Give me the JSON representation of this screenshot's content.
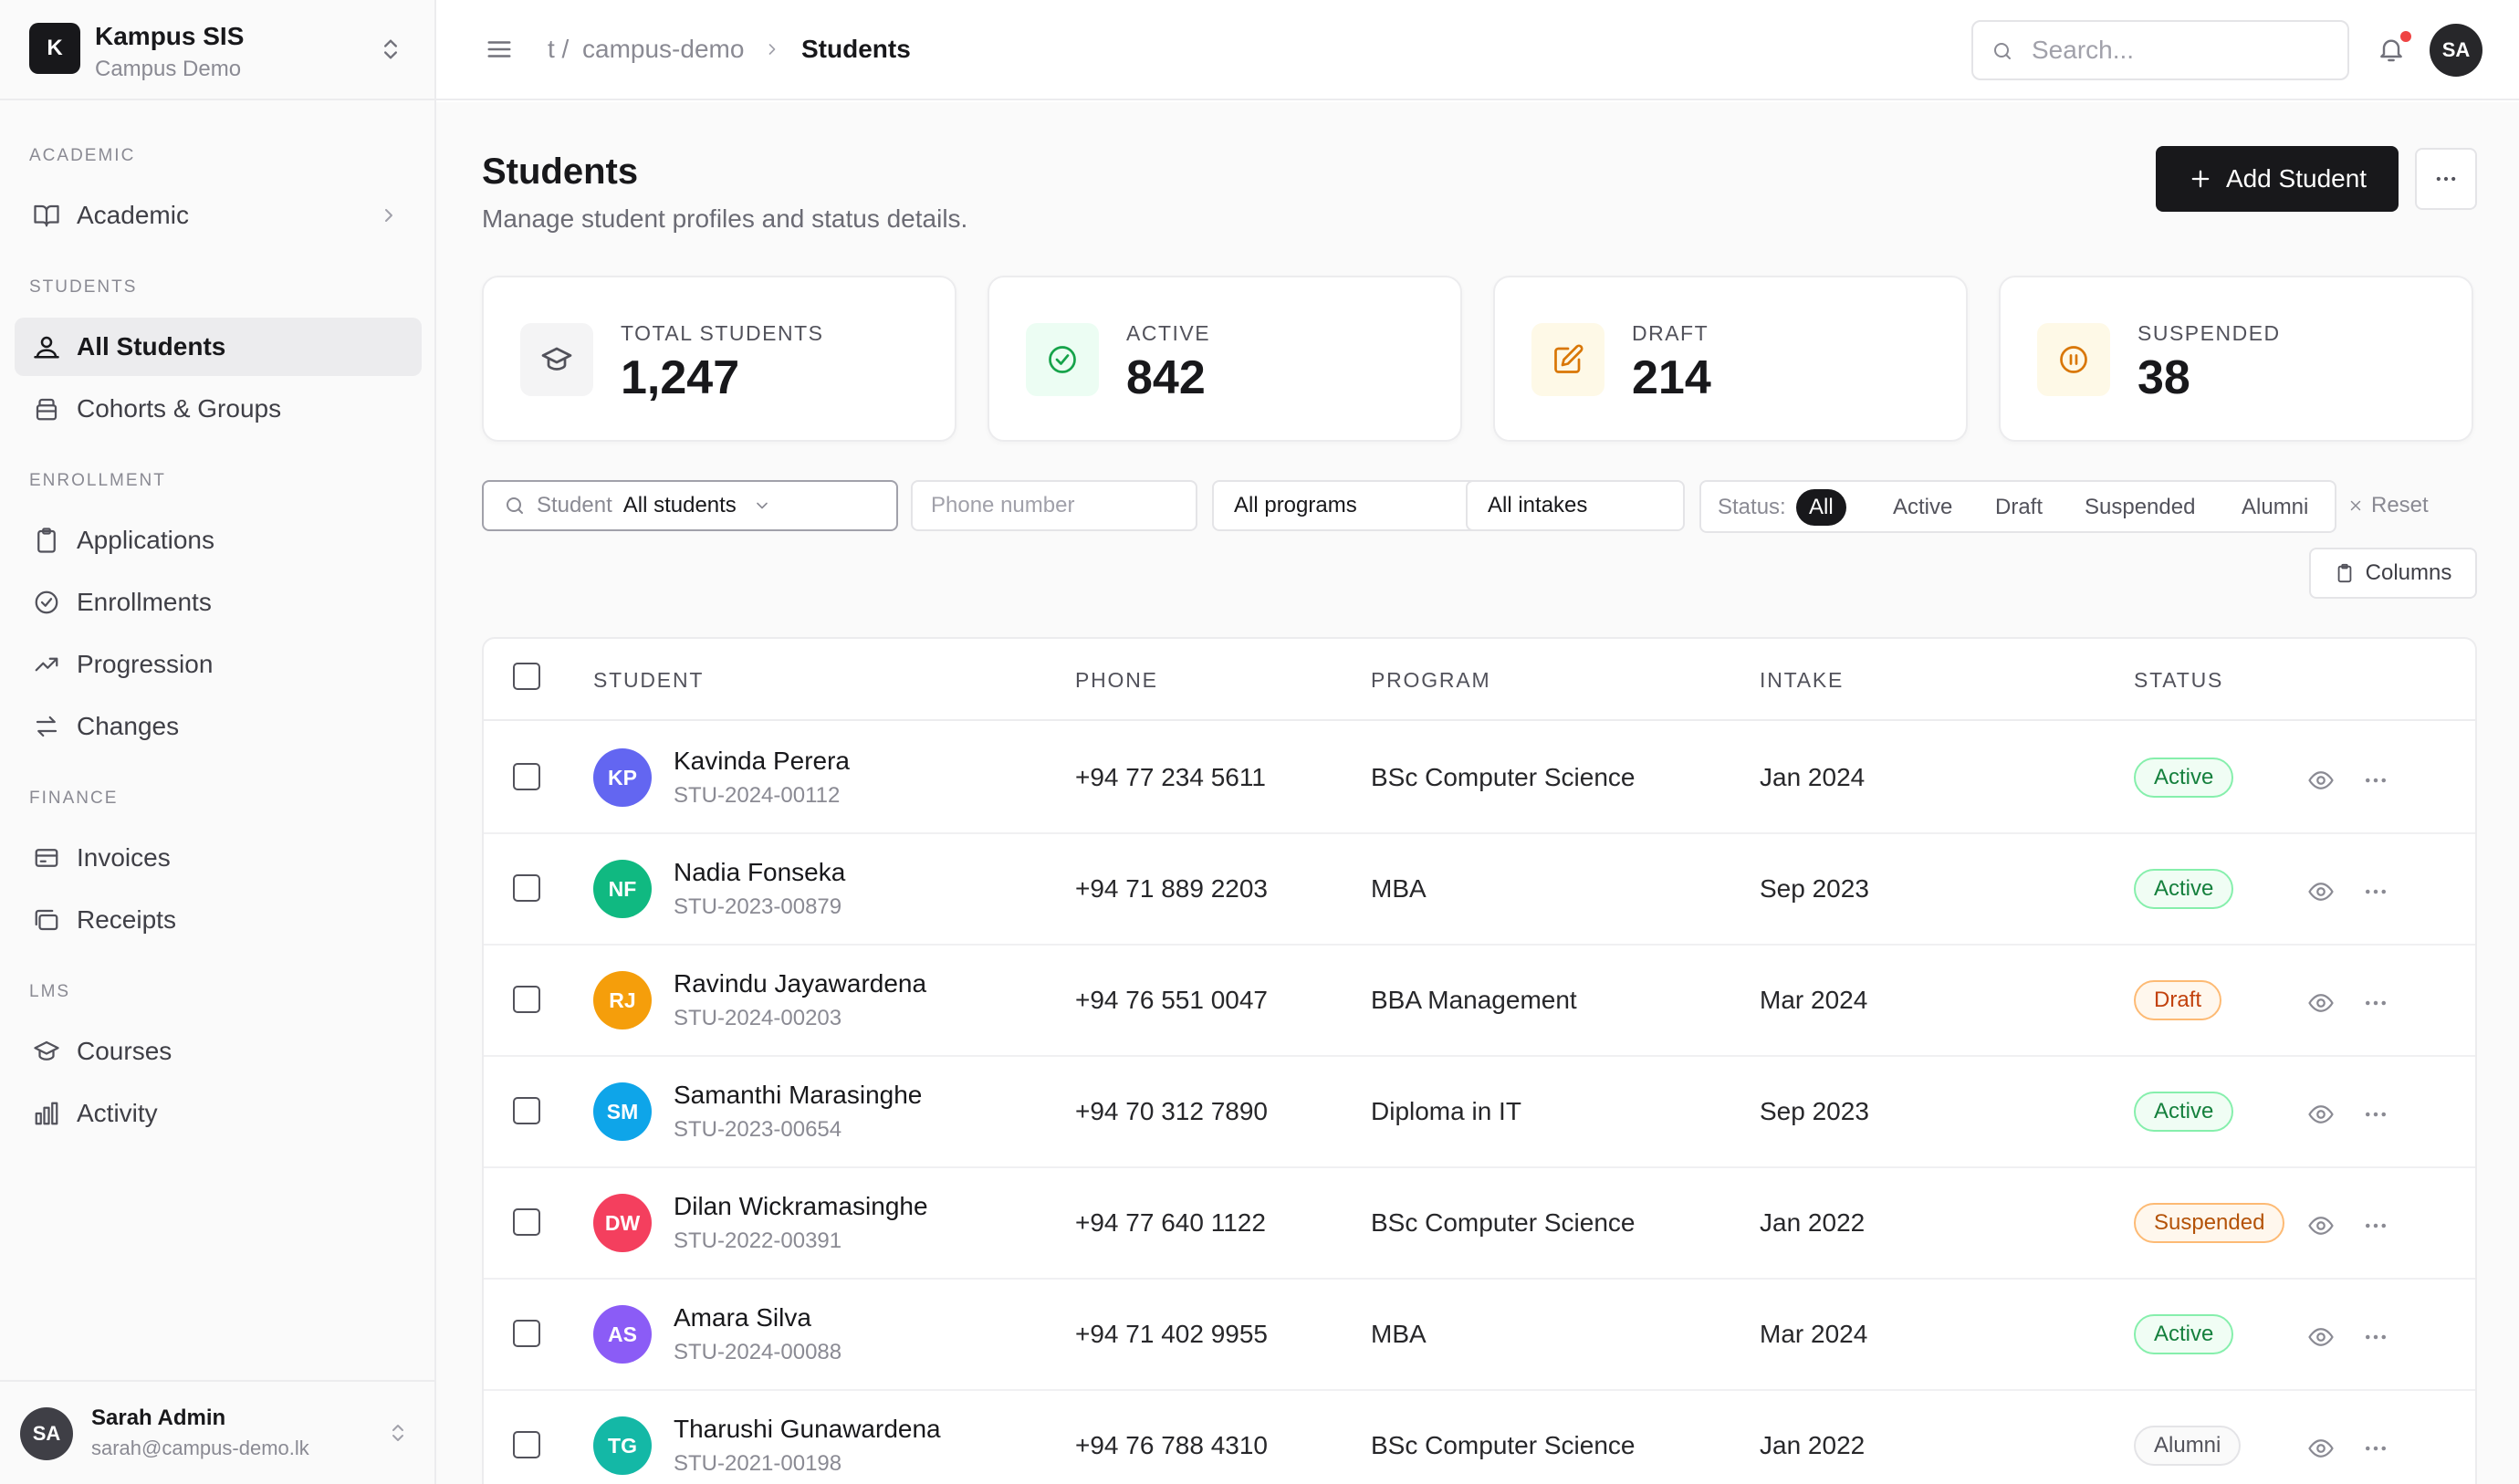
{
  "brand": {
    "logo": "K",
    "name": "Kampus SIS",
    "sub": "Campus Demo",
    "switch_icon": "chevrons-up-down-icon"
  },
  "sidebar": {
    "sections": [
      {
        "title": "ACADEMIC"
      },
      {
        "title": "STUDENTS"
      },
      {
        "title": "ENROLLMENT"
      },
      {
        "title": "FINANCE"
      },
      {
        "title": "LMS"
      }
    ],
    "items": [
      {
        "label": "Academic",
        "icon": "book-open-icon"
      },
      {
        "label": "All Students",
        "icon": "users-icon",
        "active": true
      },
      {
        "label": "Cohorts & Groups",
        "icon": "layers-icon"
      },
      {
        "label": "Applications",
        "icon": "clipboard-icon"
      },
      {
        "label": "Enrollments",
        "icon": "check-circle-icon"
      },
      {
        "label": "Progression",
        "icon": "trending-up-icon"
      },
      {
        "label": "Changes",
        "icon": "swap-icon"
      },
      {
        "label": "Invoices",
        "icon": "credit-card-icon"
      },
      {
        "label": "Receipts",
        "icon": "receipt-icon"
      },
      {
        "label": "Courses",
        "icon": "graduation-cap-icon"
      },
      {
        "label": "Activity",
        "icon": "bar-chart-icon"
      }
    ]
  },
  "user": {
    "initials": "SA",
    "name": "Sarah Admin",
    "email": "sarah@campus-demo.lk"
  },
  "topbar": {
    "breadcrumb": [
      "t /",
      "campus-demo",
      "Students"
    ],
    "search_placeholder": "Search...",
    "avatar": "SA",
    "notification_dot": true
  },
  "page": {
    "title": "Students",
    "subtitle": "Manage student profiles and status details.",
    "add_button": "Add Student"
  },
  "stats": [
    {
      "label": "TOTAL STUDENTS",
      "value": "1,247",
      "icon": "graduation-cap-icon",
      "bg": "#f4f4f5",
      "fg": "#52525b"
    },
    {
      "label": "ACTIVE",
      "value": "842",
      "icon": "check-circle-icon",
      "bg": "#ecfdf3",
      "fg": "#16a34a"
    },
    {
      "label": "DRAFT",
      "value": "214",
      "icon": "edit-icon",
      "bg": "#fef9e7",
      "fg": "#d97706"
    },
    {
      "label": "SUSPENDED",
      "value": "38",
      "icon": "pause-circle-icon",
      "bg": "#fef9e7",
      "fg": "#d97706"
    }
  ],
  "filters": {
    "student_label": "Student",
    "student_value": "All students",
    "phone_placeholder": "Phone number",
    "program": "All programs",
    "intake": "All intakes",
    "status_label": "Status:",
    "status_options": [
      "All",
      "Active",
      "Draft",
      "Suspended",
      "Alumni"
    ],
    "status_selected": "All",
    "reset": "Reset",
    "columns": "Columns"
  },
  "table": {
    "headers": [
      "STUDENT",
      "PHONE",
      "PROGRAM",
      "INTAKE",
      "STATUS"
    ],
    "rows": [
      {
        "initials": "KP",
        "color": "#6366f1",
        "name": "Kavinda Perera",
        "id": "STU-2024-00112",
        "phone": "+94 77 234 5611",
        "program": "BSc Computer Science",
        "intake": "Jan 2024",
        "status": "Active"
      },
      {
        "initials": "NF",
        "color": "#10b981",
        "name": "Nadia Fonseka",
        "id": "STU-2023-00879",
        "phone": "+94 71 889 2203",
        "program": "MBA",
        "intake": "Sep 2023",
        "status": "Active"
      },
      {
        "initials": "RJ",
        "color": "#f59e0b",
        "name": "Ravindu Jayawardena",
        "id": "STU-2024-00203",
        "phone": "+94 76 551 0047",
        "program": "BBA Management",
        "intake": "Mar 2024",
        "status": "Draft"
      },
      {
        "initials": "SM",
        "color": "#0ea5e9",
        "name": "Samanthi Marasinghe",
        "id": "STU-2023-00654",
        "phone": "+94 70 312 7890",
        "program": "Diploma in IT",
        "intake": "Sep 2023",
        "status": "Active"
      },
      {
        "initials": "DW",
        "color": "#f43f5e",
        "name": "Dilan Wickramasinghe",
        "id": "STU-2022-00391",
        "phone": "+94 77 640 1122",
        "program": "BSc Computer Science",
        "intake": "Jan 2022",
        "status": "Suspended"
      },
      {
        "initials": "AS",
        "color": "#8b5cf6",
        "name": "Amara Silva",
        "id": "STU-2024-00088",
        "phone": "+94 71 402 9955",
        "program": "MBA",
        "intake": "Mar 2024",
        "status": "Active"
      },
      {
        "initials": "TG",
        "color": "#14b8a6",
        "name": "Tharushi Gunawardena",
        "id": "STU-2021-00198",
        "phone": "+94 76 788 4310",
        "program": "BSc Computer Science",
        "intake": "Jan 2022",
        "status": "Alumni"
      }
    ],
    "status_styles": {
      "Active": {
        "bg": "#f0fdf4",
        "border": "#86efac",
        "fg": "#15803d"
      },
      "Draft": {
        "bg": "#fff7ed",
        "border": "#fdba74",
        "fg": "#c2410c"
      },
      "Suspended": {
        "bg": "#fff7ed",
        "border": "#fdba74",
        "fg": "#b45309"
      },
      "Alumni": {
        "bg": "#fafafa",
        "border": "#e4e4e7",
        "fg": "#52525b"
      }
    }
  }
}
